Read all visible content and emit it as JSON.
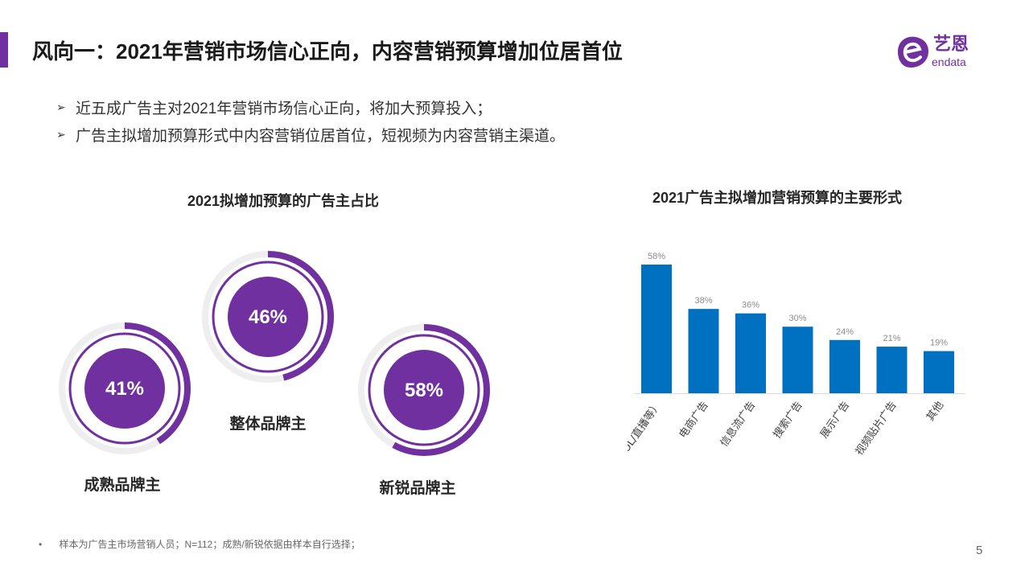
{
  "title": "风向一：2021年营销市场信心正向，内容营销预算增加位居首位",
  "logo": {
    "brand_cn": "艺恩",
    "brand_en": "endata"
  },
  "bullets": [
    "近五成广告主对2021年营销市场信心正向，将加大预算投入；",
    "广告主拟增加预算形式中内容营销位居首位，短视频为内容营销主渠道。"
  ],
  "left_panel": {
    "title": "2021拟增加预算的广告主占比",
    "donuts": [
      {
        "label": "成熟品牌主",
        "value_text": "41%",
        "value": 41
      },
      {
        "label": "整体品牌主",
        "value_text": "46%",
        "value": 46
      },
      {
        "label": "新锐品牌主",
        "value_text": "58%",
        "value": 58
      }
    ]
  },
  "chart_data": {
    "type": "bar",
    "title": "2021广告主拟增加营销预算的主要形式",
    "categories": [
      "内容营销（明星/KOL/直播等）",
      "电商广告",
      "信息流广告",
      "搜索广告",
      "展示广告",
      "视频贴片广告",
      "其他"
    ],
    "values": [
      58,
      38,
      36,
      30,
      24,
      21,
      19
    ],
    "value_labels": [
      "58%",
      "38%",
      "36%",
      "30%",
      "24%",
      "21%",
      "19%"
    ],
    "unit": "%",
    "bar_color": "#0070c0",
    "grid": false
  },
  "footnote": "样本为广告主市场营销人员；N=112；成熟/新锐依据由样本自行选择；",
  "page_number": "5",
  "colors": {
    "accent": "#7030a0",
    "bar": "#0070c0",
    "ring_track": "#eeeeee"
  }
}
